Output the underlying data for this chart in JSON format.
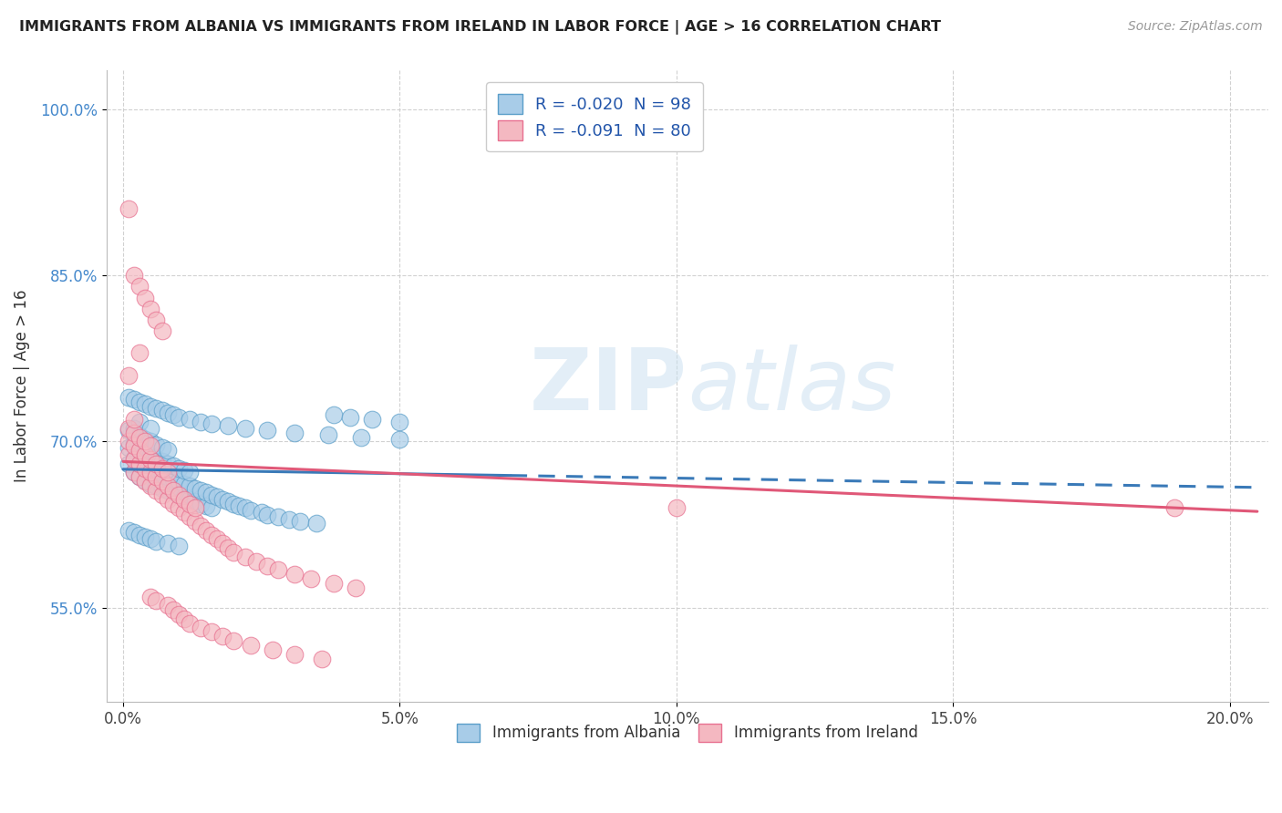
{
  "title": "IMMIGRANTS FROM ALBANIA VS IMMIGRANTS FROM IRELAND IN LABOR FORCE | AGE > 16 CORRELATION CHART",
  "source": "Source: ZipAtlas.com",
  "ylabel": "In Labor Force | Age > 16",
  "xlabel_ticks": [
    "0.0%",
    "5.0%",
    "10.0%",
    "15.0%",
    "20.0%"
  ],
  "xlabel_vals": [
    0.0,
    0.05,
    0.1,
    0.15,
    0.2
  ],
  "ylabel_ticks": [
    "55.0%",
    "70.0%",
    "85.0%",
    "100.0%"
  ],
  "ylabel_vals": [
    0.55,
    0.7,
    0.85,
    1.0
  ],
  "xlim": [
    -0.003,
    0.207
  ],
  "ylim": [
    0.465,
    1.035
  ],
  "albania_color": "#a8cce8",
  "ireland_color": "#f4b8c1",
  "albania_edge_color": "#5a9ec9",
  "ireland_edge_color": "#e87090",
  "albania_line_color": "#3a7ab8",
  "ireland_line_color": "#e05878",
  "R_albania": -0.02,
  "N_albania": 98,
  "R_ireland": -0.091,
  "N_ireland": 80,
  "legend_label_albania": "R = -0.020  N = 98",
  "legend_label_ireland": "R = -0.091  N = 80",
  "watermark_zip": "ZIP",
  "watermark_atlas": "atlas",
  "background_color": "#ffffff",
  "grid_color": "#cccccc",
  "ab_trend_solid_end": 0.07,
  "ab_intercept": 0.675,
  "ab_slope": -0.08,
  "ir_intercept": 0.682,
  "ir_slope": -0.22,
  "albania_x": [
    0.001,
    0.001,
    0.001,
    0.002,
    0.002,
    0.002,
    0.002,
    0.003,
    0.003,
    0.003,
    0.003,
    0.003,
    0.004,
    0.004,
    0.004,
    0.004,
    0.005,
    0.005,
    0.005,
    0.005,
    0.005,
    0.006,
    0.006,
    0.006,
    0.006,
    0.007,
    0.007,
    0.007,
    0.007,
    0.008,
    0.008,
    0.008,
    0.008,
    0.009,
    0.009,
    0.009,
    0.01,
    0.01,
    0.01,
    0.011,
    0.011,
    0.011,
    0.012,
    0.012,
    0.012,
    0.013,
    0.013,
    0.014,
    0.014,
    0.015,
    0.015,
    0.016,
    0.016,
    0.017,
    0.018,
    0.019,
    0.02,
    0.021,
    0.022,
    0.023,
    0.025,
    0.026,
    0.028,
    0.03,
    0.032,
    0.035,
    0.038,
    0.041,
    0.045,
    0.05,
    0.001,
    0.002,
    0.003,
    0.004,
    0.005,
    0.006,
    0.007,
    0.008,
    0.009,
    0.01,
    0.012,
    0.014,
    0.016,
    0.019,
    0.022,
    0.026,
    0.031,
    0.037,
    0.043,
    0.05,
    0.001,
    0.002,
    0.003,
    0.004,
    0.005,
    0.006,
    0.008,
    0.01
  ],
  "albania_y": [
    0.68,
    0.695,
    0.71,
    0.672,
    0.685,
    0.698,
    0.712,
    0.668,
    0.68,
    0.692,
    0.705,
    0.718,
    0.665,
    0.678,
    0.69,
    0.702,
    0.662,
    0.675,
    0.687,
    0.7,
    0.712,
    0.66,
    0.672,
    0.685,
    0.697,
    0.658,
    0.67,
    0.682,
    0.695,
    0.656,
    0.668,
    0.68,
    0.692,
    0.654,
    0.666,
    0.678,
    0.652,
    0.664,
    0.676,
    0.65,
    0.662,
    0.674,
    0.648,
    0.66,
    0.672,
    0.646,
    0.658,
    0.644,
    0.656,
    0.642,
    0.654,
    0.64,
    0.652,
    0.65,
    0.648,
    0.646,
    0.644,
    0.642,
    0.64,
    0.638,
    0.636,
    0.634,
    0.632,
    0.63,
    0.628,
    0.626,
    0.724,
    0.722,
    0.72,
    0.718,
    0.74,
    0.738,
    0.736,
    0.734,
    0.732,
    0.73,
    0.728,
    0.726,
    0.724,
    0.722,
    0.72,
    0.718,
    0.716,
    0.714,
    0.712,
    0.71,
    0.708,
    0.706,
    0.704,
    0.702,
    0.62,
    0.618,
    0.616,
    0.614,
    0.612,
    0.61,
    0.608,
    0.606
  ],
  "ireland_x": [
    0.001,
    0.001,
    0.001,
    0.002,
    0.002,
    0.002,
    0.002,
    0.003,
    0.003,
    0.003,
    0.003,
    0.004,
    0.004,
    0.004,
    0.004,
    0.005,
    0.005,
    0.005,
    0.005,
    0.006,
    0.006,
    0.006,
    0.007,
    0.007,
    0.007,
    0.008,
    0.008,
    0.008,
    0.009,
    0.009,
    0.01,
    0.01,
    0.011,
    0.011,
    0.012,
    0.012,
    0.013,
    0.013,
    0.014,
    0.015,
    0.016,
    0.017,
    0.018,
    0.019,
    0.02,
    0.022,
    0.024,
    0.026,
    0.028,
    0.031,
    0.034,
    0.038,
    0.042,
    0.001,
    0.001,
    0.002,
    0.002,
    0.003,
    0.003,
    0.004,
    0.005,
    0.005,
    0.006,
    0.006,
    0.007,
    0.008,
    0.009,
    0.01,
    0.011,
    0.012,
    0.014,
    0.016,
    0.018,
    0.02,
    0.023,
    0.027,
    0.031,
    0.036,
    0.1,
    0.19
  ],
  "ireland_y": [
    0.688,
    0.7,
    0.712,
    0.672,
    0.684,
    0.696,
    0.708,
    0.668,
    0.68,
    0.692,
    0.704,
    0.664,
    0.676,
    0.688,
    0.7,
    0.66,
    0.672,
    0.684,
    0.696,
    0.656,
    0.668,
    0.68,
    0.652,
    0.664,
    0.676,
    0.648,
    0.66,
    0.672,
    0.644,
    0.656,
    0.64,
    0.652,
    0.636,
    0.648,
    0.632,
    0.644,
    0.628,
    0.64,
    0.624,
    0.62,
    0.616,
    0.612,
    0.608,
    0.604,
    0.6,
    0.596,
    0.592,
    0.588,
    0.584,
    0.58,
    0.576,
    0.572,
    0.568,
    0.91,
    0.76,
    0.85,
    0.72,
    0.84,
    0.78,
    0.83,
    0.56,
    0.82,
    0.81,
    0.556,
    0.8,
    0.552,
    0.548,
    0.544,
    0.54,
    0.536,
    0.532,
    0.528,
    0.524,
    0.52,
    0.516,
    0.512,
    0.508,
    0.504,
    0.64,
    0.64
  ]
}
